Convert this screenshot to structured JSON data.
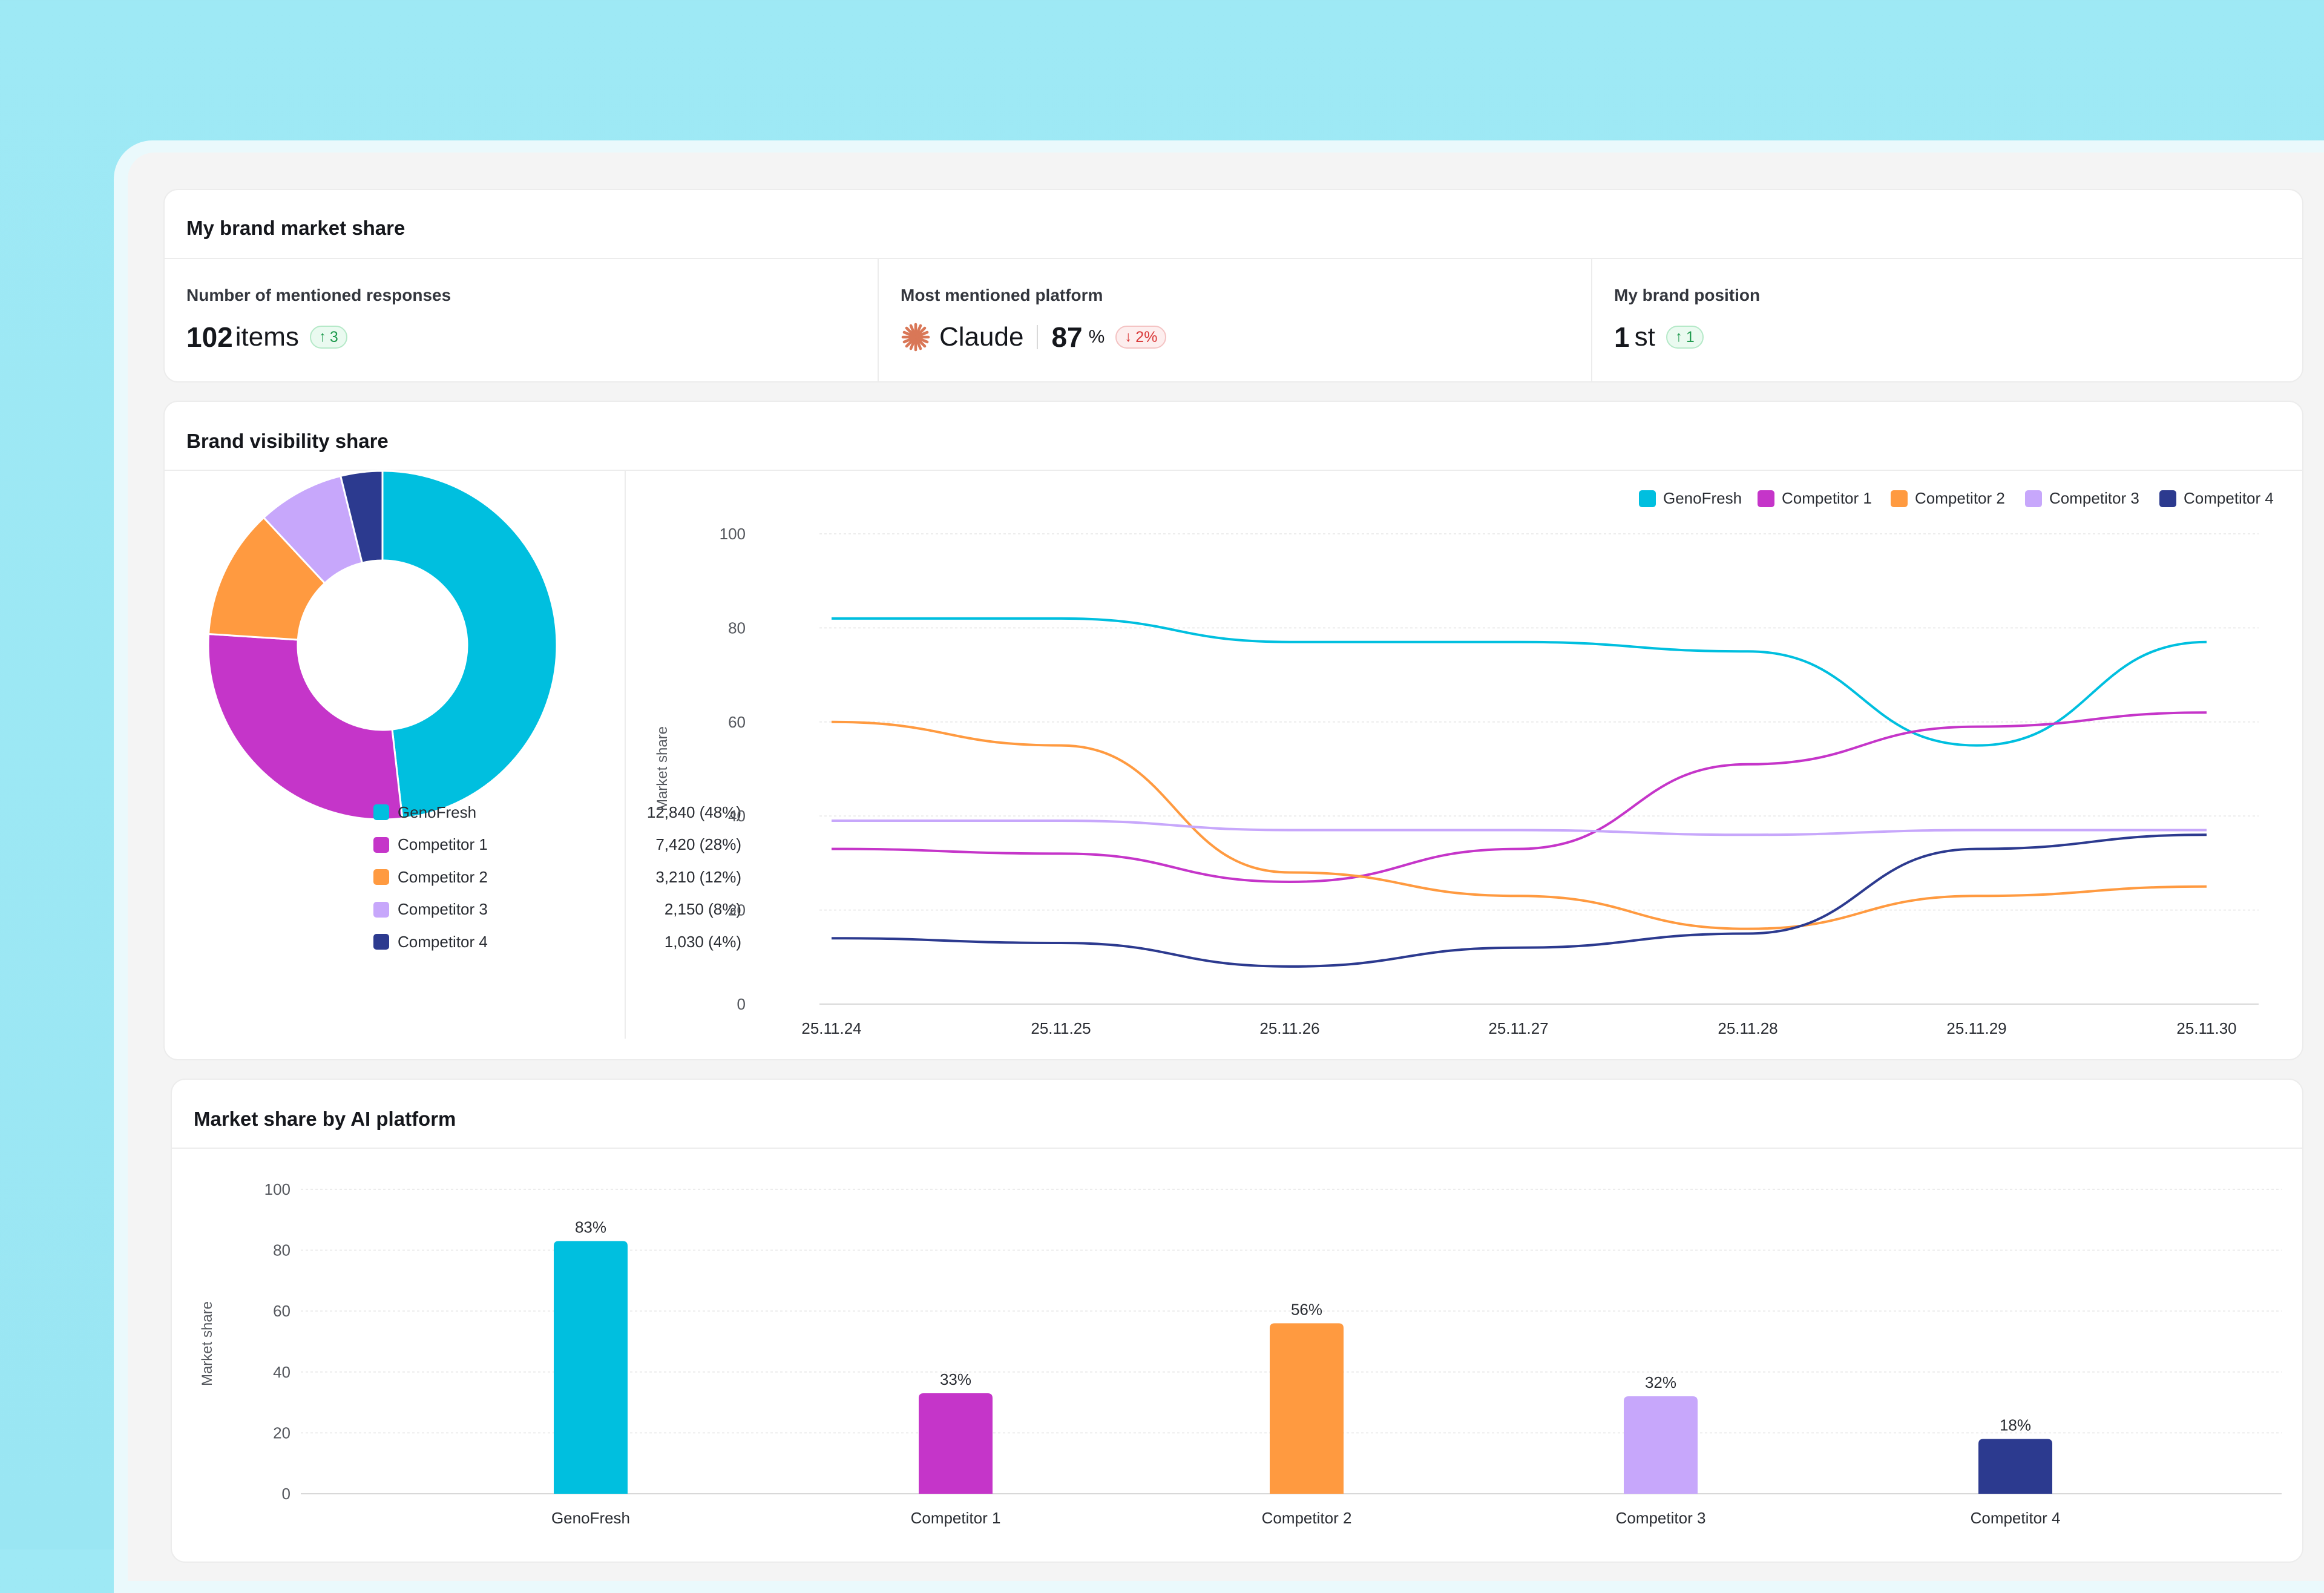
{
  "market_share": {
    "title": "My brand market share",
    "mentioned": {
      "label": "Number of mentioned responses",
      "value": "102",
      "unit": "items",
      "change": "3",
      "change_dir": "up"
    },
    "platform": {
      "label": "Most mentioned platform",
      "name": "Claude",
      "icon": "claude-logo-icon",
      "value": "87",
      "unit": "%",
      "change": "2%",
      "change_dir": "down"
    },
    "position": {
      "label": "My brand position",
      "value": "1",
      "unit": "st",
      "change": "1",
      "change_dir": "up"
    }
  },
  "visibility": {
    "title": "Brand visibility share",
    "donut": {
      "type": "pie",
      "items": [
        {
          "name": "GenoFresh",
          "value": 12840,
          "display": "12,840 (48%)",
          "color": "#00bfdf"
        },
        {
          "name": "Competitor 1",
          "value": 7420,
          "display": "7,420 (28%)",
          "color": "#c535c9"
        },
        {
          "name": "Competitor 2",
          "value": 3210,
          "display": "3,210 (12%)",
          "color": "#ff9a40"
        },
        {
          "name": "Competitor 3",
          "value": 2150,
          "display": "2,150 (8%)",
          "color": "#c7a7fb"
        },
        {
          "name": "Competitor 4",
          "value": 1030,
          "display": "1,030 (4%)",
          "color": "#2c3a8f"
        }
      ]
    }
  },
  "chart_data": [
    {
      "type": "pie",
      "categories": [
        "GenoFresh",
        "Competitor 1",
        "Competitor 2",
        "Competitor 3",
        "Competitor 4"
      ],
      "values": [
        12840,
        7420,
        3210,
        2150,
        1030
      ],
      "percents": [
        48,
        28,
        12,
        8,
        4
      ]
    },
    {
      "type": "line",
      "x": [
        "25.11.24",
        "25.11.25",
        "25.11.26",
        "25.11.27",
        "25.11.28",
        "25.11.29",
        "25.11.30"
      ],
      "ylabel": "Market share",
      "ylim": [
        0,
        100
      ],
      "yticks": [
        0,
        20,
        40,
        60,
        80,
        100
      ],
      "grid": true,
      "legend": "top-right",
      "series": [
        {
          "name": "GenoFresh",
          "color": "#00bfdf",
          "values": [
            82,
            82,
            77,
            77,
            75,
            55,
            77
          ]
        },
        {
          "name": "Competitor 1",
          "color": "#c535c9",
          "values": [
            33,
            32,
            26,
            33,
            51,
            59,
            62
          ]
        },
        {
          "name": "Competitor 2",
          "color": "#ff9a40",
          "values": [
            60,
            55,
            28,
            23,
            16,
            23,
            25
          ]
        },
        {
          "name": "Competitor 3",
          "color": "#c7a7fb",
          "values": [
            39,
            39,
            37,
            37,
            36,
            37,
            37
          ]
        },
        {
          "name": "Competitor 4",
          "color": "#2c3a8f",
          "values": [
            14,
            13,
            8,
            12,
            15,
            33,
            36
          ]
        }
      ]
    },
    {
      "type": "bar",
      "title": "Market share by AI platform",
      "categories": [
        "GenoFresh",
        "Competitor 1",
        "Competitor 2",
        "Competitor 3",
        "Competitor 4"
      ],
      "values": [
        83,
        33,
        56,
        32,
        18
      ],
      "labels": [
        "83%",
        "33%",
        "56%",
        "32%",
        "18%"
      ],
      "colors": [
        "#00bfdf",
        "#c535c9",
        "#ff9a40",
        "#c7a7fb",
        "#2c3a8f"
      ],
      "ylabel": "Market share",
      "ylim": [
        0,
        100
      ],
      "yticks": [
        0,
        20,
        40,
        60,
        80,
        100
      ],
      "grid": true
    }
  ]
}
